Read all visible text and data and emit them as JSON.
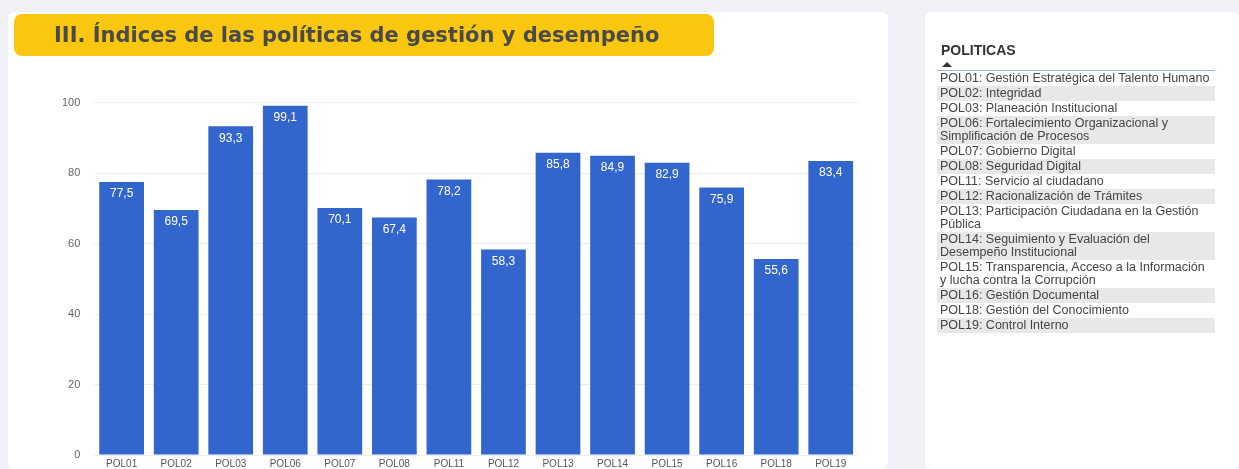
{
  "chart_data": [
    {
      "type": "bar",
      "title": "III. Índices de las políticas de gestión y desempeño",
      "categories": [
        "POL01",
        "POL02",
        "POL03",
        "POL06",
        "POL07",
        "POL08",
        "POL11",
        "POL12",
        "POL13",
        "POL14",
        "POL15",
        "POL16",
        "POL18",
        "POL19"
      ],
      "values": [
        77.5,
        69.5,
        93.3,
        99.1,
        70.1,
        67.4,
        78.2,
        58.3,
        85.8,
        84.9,
        82.9,
        75.9,
        55.6,
        83.4
      ],
      "value_labels": [
        "77,5",
        "69,5",
        "93,3",
        "99,1",
        "70,1",
        "67,4",
        "78,2",
        "58,3",
        "85,8",
        "84,9",
        "82,9",
        "75,9",
        "55,6",
        "83,4"
      ],
      "color": "#3366cc",
      "ylim": [
        0,
        100
      ],
      "yticks": [
        0,
        20,
        40,
        60,
        80,
        100
      ],
      "grid": "y",
      "legend": false
    },
    {
      "type": "other",
      "title": "POLITICAS",
      "annotations": [
        "POL01: Gestión Estratégica del Talento Humano",
        "POL02: Integridad",
        "POL03: Planeación Institucional",
        "POL06: Fortalecimiento Organizacional y Simplificación de Procesos",
        "POL07: Gobierno Digital",
        "POL08: Seguridad Digital",
        "POL11: Servicio al ciudadano",
        "POL12: Racionalización de Trámites",
        "POL13: Participación Ciudadana en la Gestión Pública",
        "POL14: Seguimiento y Evaluación del Desempeño Institucional",
        "POL15: Transparencia, Acceso a la Información y lucha contra la Corrupción",
        "POL16: Gestión Documental",
        "POL18: Gestión del Conocimiento",
        "POL19: Control Interno"
      ]
    }
  ]
}
